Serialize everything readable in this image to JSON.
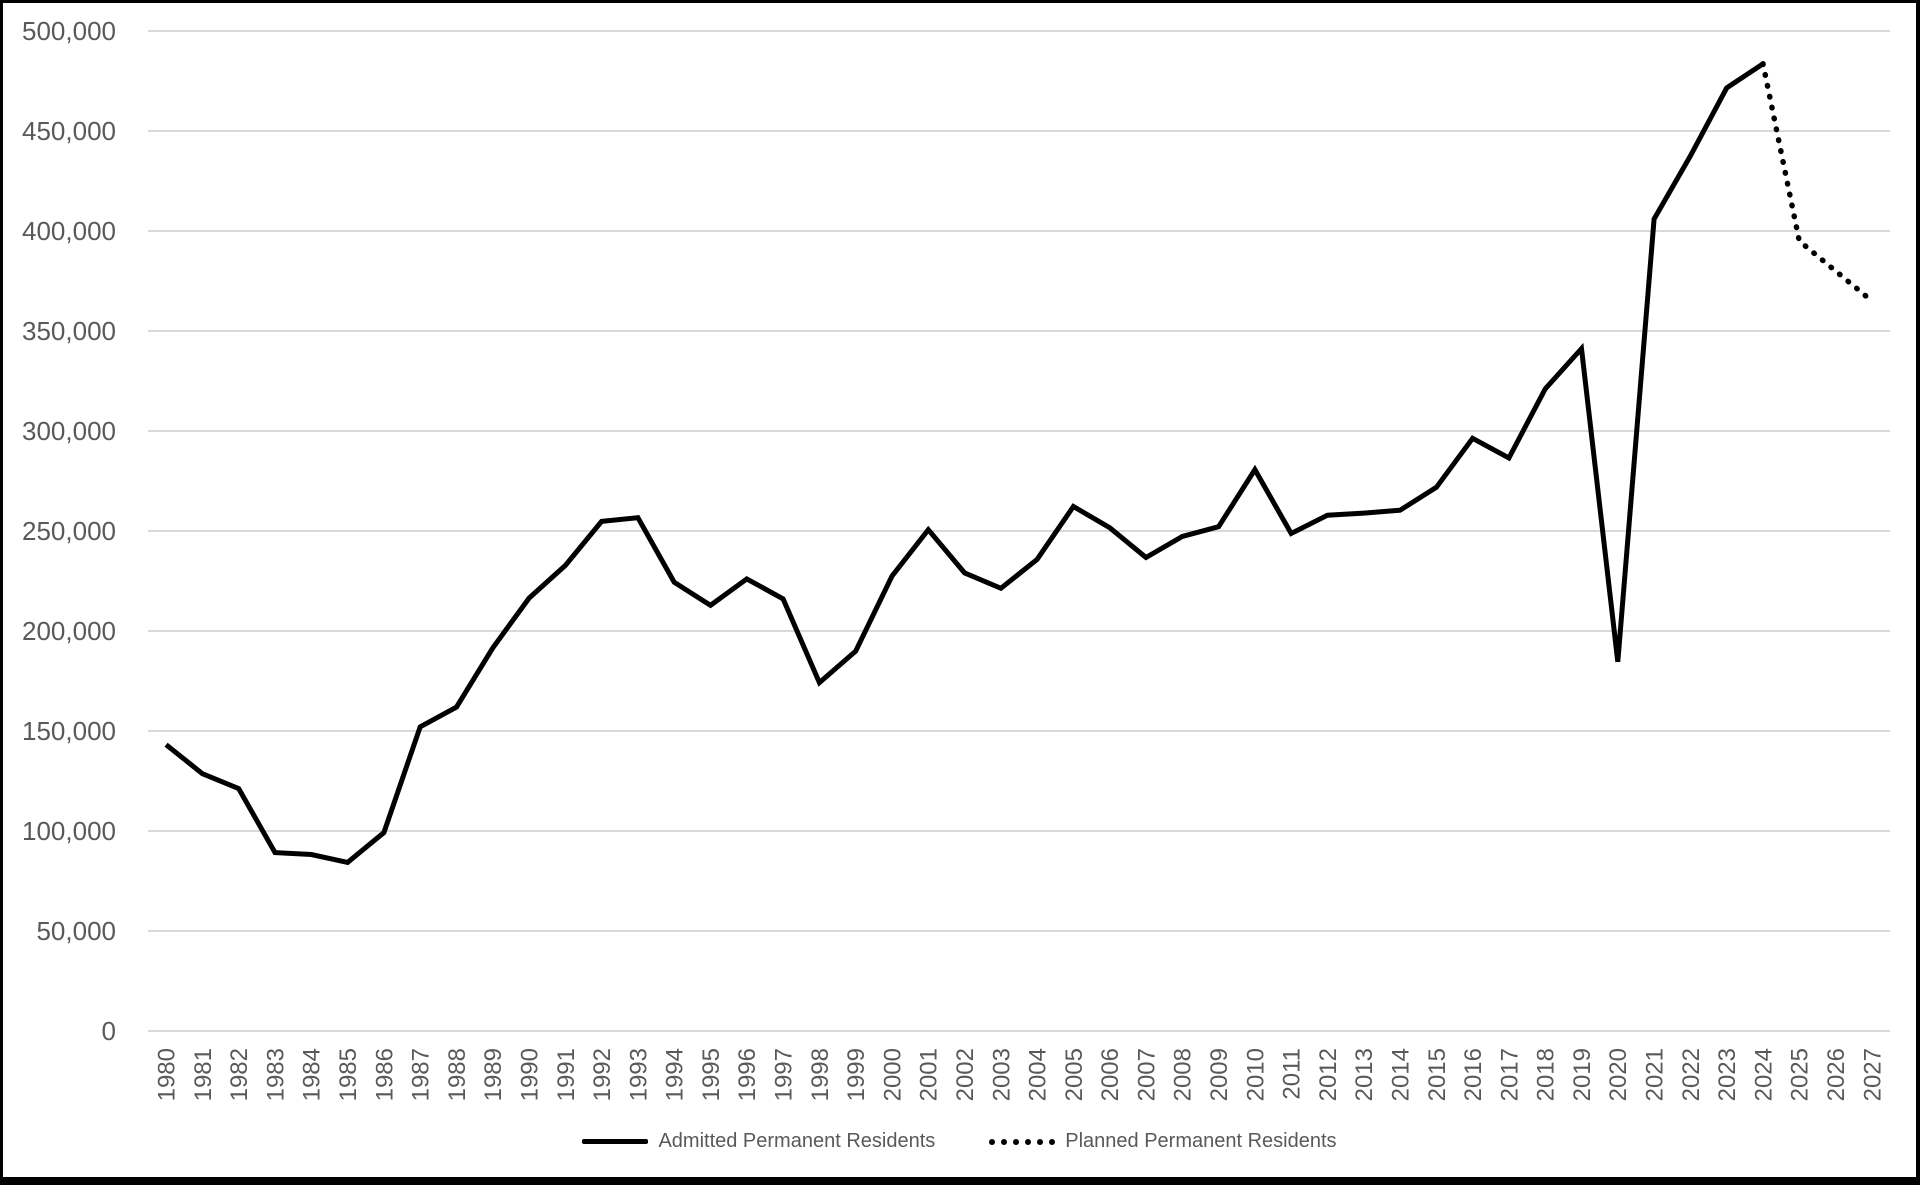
{
  "chart": {
    "title": "",
    "colors": {
      "series_line": "#000000",
      "gridline": "#d9d9d9",
      "axis_text": "#595959",
      "background": "#ffffff",
      "border": "#000000"
    },
    "legend": {
      "admitted_label": "Admitted Permanent Residents",
      "planned_label": "Planned Permanent Residents"
    }
  },
  "chart_data": {
    "type": "line",
    "title": "",
    "xlabel": "",
    "ylabel": "",
    "grid": "horizontal",
    "legend_position": "bottom-center",
    "ylim": [
      0,
      500000
    ],
    "ytick_interval": 50000,
    "yticks": {
      "values": [
        0,
        50000,
        100000,
        150000,
        200000,
        250000,
        300000,
        350000,
        400000,
        450000,
        500000
      ],
      "labels": [
        "0",
        "50,000",
        "100,000",
        "150,000",
        "200,000",
        "250,000",
        "300,000",
        "350,000",
        "400,000",
        "450,000",
        "500,000"
      ]
    },
    "categories": [
      "1980",
      "1981",
      "1982",
      "1983",
      "1984",
      "1985",
      "1986",
      "1987",
      "1988",
      "1989",
      "1990",
      "1991",
      "1992",
      "1993",
      "1994",
      "1995",
      "1996",
      "1997",
      "1998",
      "1999",
      "2000",
      "2001",
      "2002",
      "2003",
      "2004",
      "2005",
      "2006",
      "2007",
      "2008",
      "2009",
      "2010",
      "2011",
      "2012",
      "2013",
      "2014",
      "2015",
      "2016",
      "2017",
      "2018",
      "2019",
      "2020",
      "2021",
      "2022",
      "2023",
      "2024",
      "2025",
      "2026",
      "2027"
    ],
    "series": [
      {
        "name": "Admitted Permanent Residents",
        "line_style": "solid",
        "years": [
          1980,
          1981,
          1982,
          1983,
          1984,
          1985,
          1986,
          1987,
          1988,
          1989,
          1990,
          1991,
          1992,
          1993,
          1994,
          1995,
          1996,
          1997,
          1998,
          1999,
          2000,
          2001,
          2002,
          2003,
          2004,
          2005,
          2006,
          2007,
          2008,
          2009,
          2010,
          2011,
          2012,
          2013,
          2014,
          2015,
          2016,
          2017,
          2018,
          2019,
          2020,
          2021,
          2022,
          2023,
          2024
        ],
        "values": [
          143140,
          128639,
          121176,
          89188,
          88272,
          84302,
          99219,
          152098,
          161929,
          191556,
          216452,
          232808,
          254817,
          256641,
          224387,
          212866,
          226071,
          216036,
          174199,
          189951,
          227457,
          250640,
          229049,
          221352,
          235824,
          262243,
          251640,
          236753,
          247246,
          252170,
          280691,
          248748,
          257903,
          258953,
          260411,
          271845,
          296346,
          286479,
          321065,
          341180,
          184598,
          405999,
          437539,
          471550,
          483591
        ]
      },
      {
        "name": "Planned Permanent Residents",
        "line_style": "dotted",
        "years": [
          2024,
          2025,
          2026,
          2027
        ],
        "values": [
          483591,
          395000,
          380000,
          365000
        ]
      }
    ]
  }
}
